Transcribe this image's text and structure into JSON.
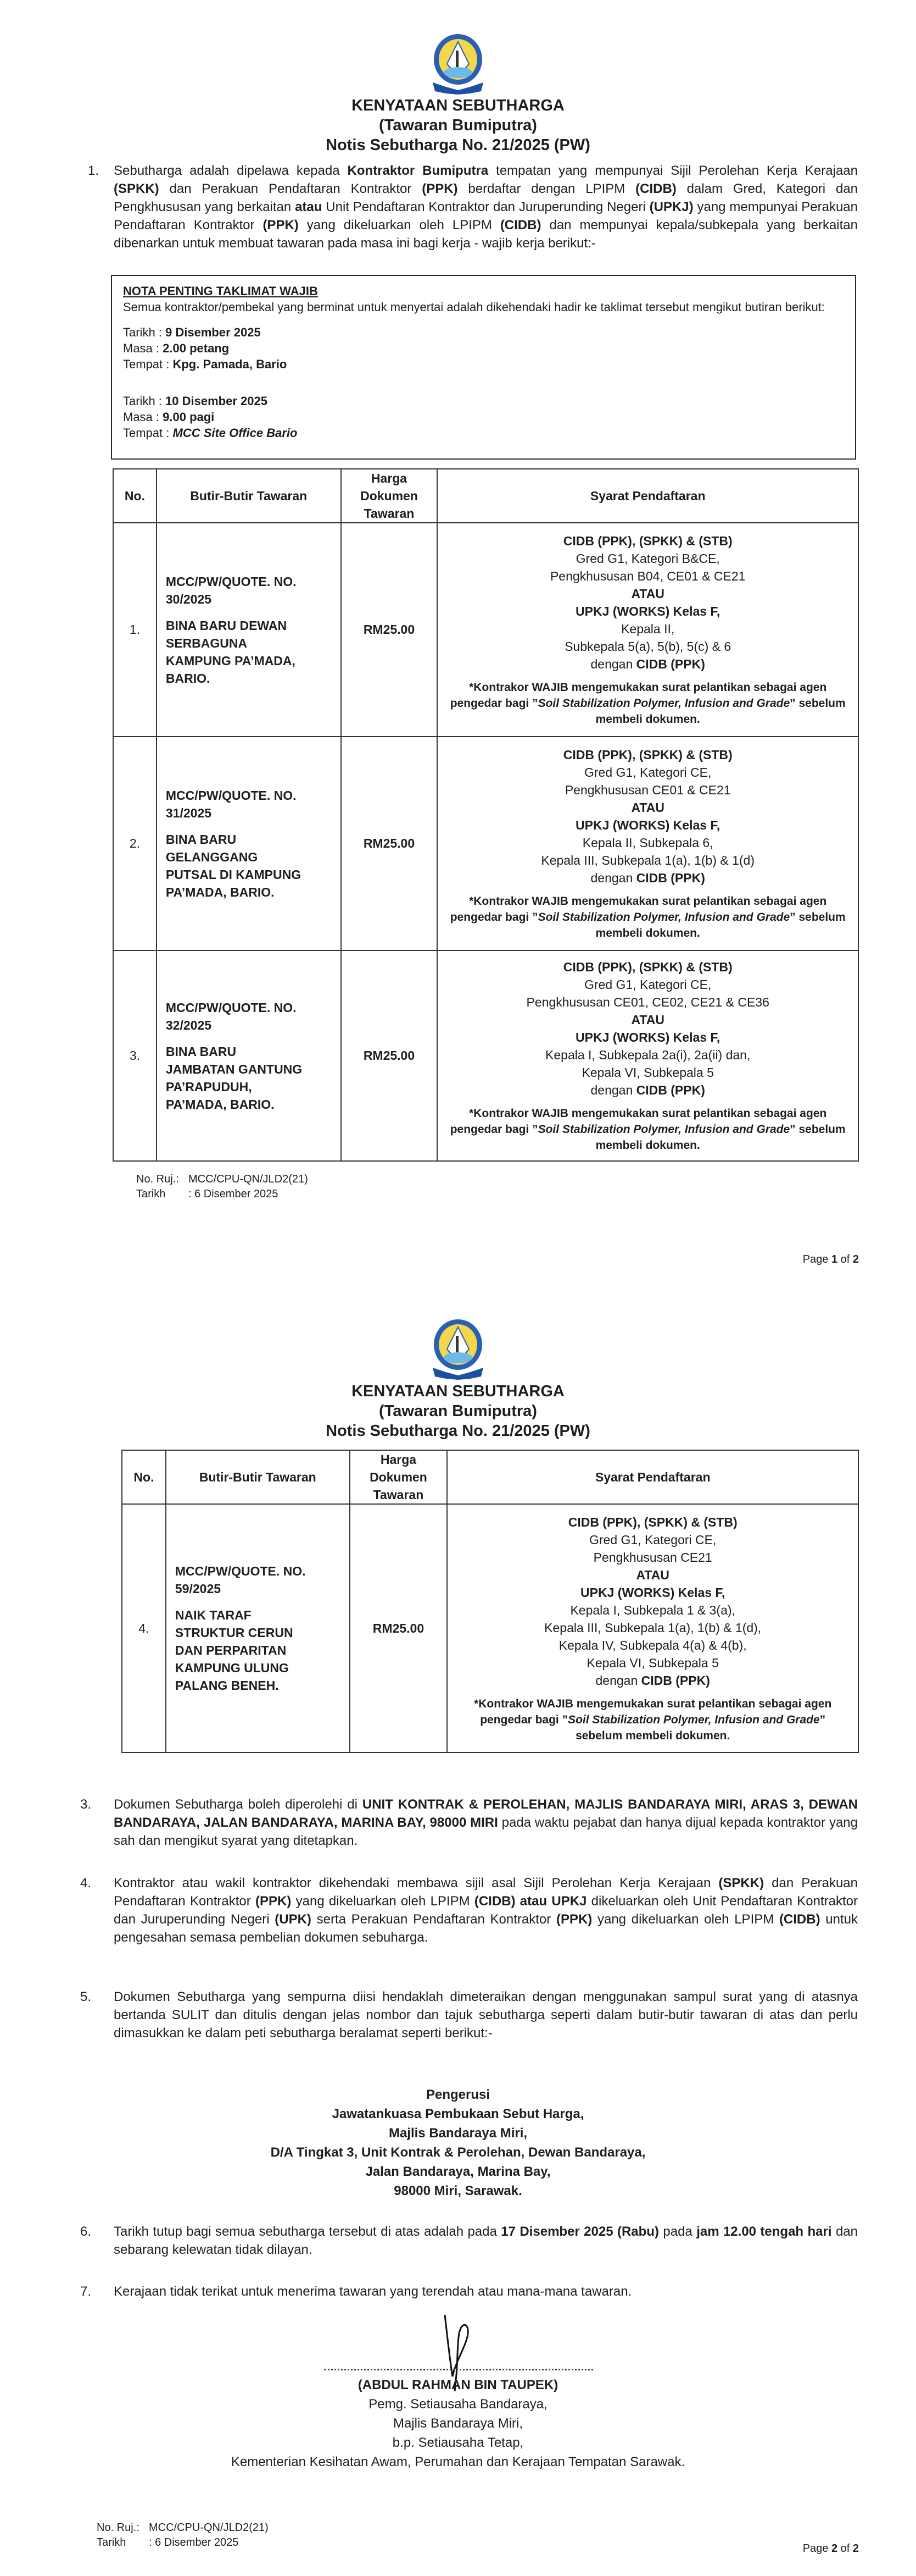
{
  "logo": {
    "name": "Majlis Bandaraya Miri emblem",
    "colors": {
      "ring": "#2b5fb4",
      "inner": "#f2d64b",
      "water": "#6fb7e6",
      "ribbon": "#1f4fa0"
    }
  },
  "header": {
    "title": "KENYATAAN SEBUTHARGA",
    "subtitle": "(Tawaran Bumiputra)",
    "notice_no": "Notis Sebutharga No. 21/2025 (PW)"
  },
  "para1": {
    "num": "1.",
    "segments": [
      {
        "t": "Sebutharga adalah dipelawa kepada "
      },
      {
        "t": "Kontraktor Bumiputra",
        "b": true
      },
      {
        "t": " tempatan yang mempunyai Sijil Perolehan Kerja Kerajaan "
      },
      {
        "t": "(SPKK)",
        "b": true
      },
      {
        "t": " dan Perakuan Pendaftaran Kontraktor "
      },
      {
        "t": "(PPK)",
        "b": true
      },
      {
        "t": " berdaftar dengan LPIPM "
      },
      {
        "t": "(CIDB)",
        "b": true
      },
      {
        "t": " dalam Gred, Kategori dan Pengkhususan yang berkaitan "
      },
      {
        "t": "atau",
        "b": true
      },
      {
        "t": " Unit Pendaftaran Kontraktor dan Juruperunding Negeri "
      },
      {
        "t": "(UPKJ)",
        "b": true
      },
      {
        "t": " yang mempunyai Perakuan Pendaftaran Kontraktor "
      },
      {
        "t": "(PPK)",
        "b": true
      },
      {
        "t": " yang dikeluarkan oleh LPIPM "
      },
      {
        "t": "(CIDB)",
        "b": true
      },
      {
        "t": " dan mempunyai kepala/subkepala yang berkaitan dibenarkan untuk membuat tawaran pada masa ini bagi kerja - wajib kerja berikut:-"
      }
    ]
  },
  "nota": {
    "heading": "NOTA PENTING TAKLIMAT WAJIB",
    "intro": "Semua kontraktor/pembekal yang berminat untuk menyertai adalah dikehendaki hadir ke taklimat tersebut mengikut butiran berikut:",
    "sessions": [
      {
        "date_label": "Tarikh : ",
        "date": "9 Disember 2025",
        "time_label": "Masa : ",
        "time": "2.00 petang",
        "place_label": "Tempat : ",
        "place": "Kpg. Pamada, Bario",
        "place_italic": false
      },
      {
        "date_label": "Tarikh : ",
        "date": "10 Disember 2025",
        "time_label": "Masa : ",
        "time": "9.00 pagi",
        "place_label": "Tempat : ",
        "place": "MCC Site Office Bario",
        "place_italic": true
      }
    ]
  },
  "table_headers": {
    "no": "No.",
    "item": "Butir-Butir Tawaran",
    "price": [
      "Harga",
      "Dokumen",
      "Tawaran"
    ],
    "req": "Syarat Pendaftaran"
  },
  "tables": [
    {
      "rows": [
        {
          "no": "1.",
          "ref": [
            "MCC/PW/QUOTE. NO.",
            "30/2025"
          ],
          "title": [
            "BINA BARU DEWAN",
            "SERBAGUNA",
            "KAMPUNG PA’MADA,",
            "BARIO."
          ],
          "price": "RM25.00",
          "req": [
            [
              {
                "t": "CIDB (PPK), (SPKK) & (STB)",
                "b": true
              }
            ],
            [
              {
                "t": "Gred G1, Kategori B&CE,"
              }
            ],
            [
              {
                "t": "Pengkhususan B04, CE01 & CE21"
              }
            ],
            [
              {
                "t": "ATAU",
                "b": true
              }
            ],
            [
              {
                "t": "UPKJ (WORKS) Kelas F,",
                "b": true
              }
            ],
            [
              {
                "t": "Kepala II,"
              }
            ],
            [
              {
                "t": "Subkepala 5(a), 5(b), 5(c) & 6"
              }
            ],
            [
              {
                "t": "dengan "
              },
              {
                "t": "CIDB (PPK)",
                "b": true
              }
            ]
          ],
          "note": [
            {
              "t": "*Kontrakor WAJIB mengemukakan surat pelantikan sebagai agen pengedar bagi ”"
            },
            {
              "t": "Soil Stabilization Polymer, Infusion and Grade",
              "i": true
            },
            {
              "t": "” sebelum membeli dokumen."
            }
          ]
        },
        {
          "no": "2.",
          "ref": [
            "MCC/PW/QUOTE. NO.",
            "31/2025"
          ],
          "title": [
            "BINA BARU",
            "GELANGGANG",
            "PUTSAL DI KAMPUNG",
            "PA’MADA, BARIO."
          ],
          "price": "RM25.00",
          "req": [
            [
              {
                "t": "CIDB (PPK), (SPKK) & (STB)",
                "b": true
              }
            ],
            [
              {
                "t": "Gred G1, Kategori CE,"
              }
            ],
            [
              {
                "t": "Pengkhususan CE01 & CE21"
              }
            ],
            [
              {
                "t": "ATAU",
                "b": true
              }
            ],
            [
              {
                "t": "UPKJ (WORKS) Kelas F,",
                "b": true
              }
            ],
            [
              {
                "t": "Kepala II, Subkepala 6,"
              }
            ],
            [
              {
                "t": "Kepala III, Subkepala 1(a), 1(b) & 1(d)"
              }
            ],
            [
              {
                "t": "dengan "
              },
              {
                "t": "CIDB (PPK)",
                "b": true
              }
            ]
          ],
          "note": [
            {
              "t": "*Kontrakor WAJIB mengemukakan surat pelantikan sebagai agen pengedar bagi ”"
            },
            {
              "t": "Soil Stabilization Polymer, Infusion and Grade",
              "i": true
            },
            {
              "t": "” sebelum membeli dokumen."
            }
          ]
        },
        {
          "no": "3.",
          "ref": [
            "MCC/PW/QUOTE. NO.",
            "32/2025"
          ],
          "title": [
            "BINA BARU",
            "JAMBATAN GANTUNG",
            "PA’RAPUDUH,",
            "PA’MADA, BARIO."
          ],
          "price": "RM25.00",
          "req": [
            [
              {
                "t": "CIDB (PPK), (SPKK) & (STB)",
                "b": true
              }
            ],
            [
              {
                "t": "Gred G1, Kategori CE,"
              }
            ],
            [
              {
                "t": "Pengkhususan CE01, CE02, CE21 & CE36"
              }
            ],
            [
              {
                "t": "ATAU",
                "b": true
              }
            ],
            [
              {
                "t": "UPKJ (WORKS) Kelas F,",
                "b": true
              }
            ],
            [
              {
                "t": "Kepala I, Subkepala 2a(i), 2a(ii) dan,"
              }
            ],
            [
              {
                "t": "Kepala VI, Subkepala 5"
              }
            ],
            [
              {
                "t": "dengan "
              },
              {
                "t": "CIDB (PPK)",
                "b": true
              }
            ]
          ],
          "note": [
            {
              "t": "*Kontrakor WAJIB mengemukakan surat pelantikan sebagai agen pengedar bagi ”"
            },
            {
              "t": "Soil Stabilization Polymer, Infusion and Grade",
              "i": true
            },
            {
              "t": "” sebelum membeli dokumen."
            }
          ]
        }
      ]
    },
    {
      "rows": [
        {
          "no": "4.",
          "ref": [
            "MCC/PW/QUOTE. NO.",
            "59/2025"
          ],
          "title": [
            "NAIK TARAF",
            "STRUKTUR CERUN",
            "DAN PERPARITAN",
            "KAMPUNG ULUNG",
            "PALANG BENEH."
          ],
          "price": "RM25.00",
          "req": [
            [
              {
                "t": "CIDB (PPK), (SPKK) & (STB)",
                "b": true
              }
            ],
            [
              {
                "t": "Gred G1, Kategori CE,"
              }
            ],
            [
              {
                "t": "Pengkhususan CE21"
              }
            ],
            [
              {
                "t": "ATAU",
                "b": true
              }
            ],
            [
              {
                "t": "UPKJ (WORKS) Kelas F,",
                "b": true
              }
            ],
            [
              {
                "t": "Kepala I, Subkepala 1 & 3(a),"
              }
            ],
            [
              {
                "t": "Kepala III, Subkepala 1(a), 1(b) & 1(d),"
              }
            ],
            [
              {
                "t": "Kepala IV, Subkepala 4(a) & 4(b),"
              }
            ],
            [
              {
                "t": "Kepala VI, Subkepala 5"
              }
            ],
            [
              {
                "t": "dengan "
              },
              {
                "t": "CIDB (PPK)",
                "b": true
              }
            ]
          ],
          "note": [
            {
              "t": "*Kontrakor WAJIB mengemukakan surat pelantikan sebagai agen pengedar bagi ”"
            },
            {
              "t": "Soil Stabilization Polymer, Infusion and Grade",
              "i": true
            },
            {
              "t": "” sebelum membeli dokumen."
            }
          ]
        }
      ]
    }
  ],
  "ref": {
    "no_label": "No. Ruj.:",
    "no_value": "MCC/CPU-QN/JLD2(21)",
    "date_label": "Tarikh",
    "date_value": ":  6 Disember 2025"
  },
  "page1": {
    "prefix": "Page ",
    "current": "1",
    "mid": " of ",
    "total": "2"
  },
  "page2": {
    "prefix": "Page ",
    "current": "2",
    "mid": " of ",
    "total": "2"
  },
  "para3": {
    "num": "3.",
    "segments": [
      {
        "t": "Dokumen Sebutharga boleh diperolehi di "
      },
      {
        "t": "UNIT KONTRAK & PEROLEHAN, MAJLIS BANDARAYA MIRI, ARAS 3, DEWAN BANDARAYA, JALAN BANDARAYA, MARINA BAY, 98000 MIRI",
        "b": true
      },
      {
        "t": " pada waktu pejabat dan hanya dijual kepada kontraktor yang sah dan mengikut syarat yang ditetapkan."
      }
    ]
  },
  "para4": {
    "num": "4.",
    "segments": [
      {
        "t": "Kontraktor atau wakil kontraktor dikehendaki membawa sijil asal Sijil Perolehan Kerja Kerajaan "
      },
      {
        "t": "(SPKK)",
        "b": true
      },
      {
        "t": " dan Perakuan Pendaftaran Kontraktor "
      },
      {
        "t": "(PPK)",
        "b": true
      },
      {
        "t": " yang dikeluarkan oleh LPIPM "
      },
      {
        "t": "(CIDB) atau UPKJ",
        "b": true
      },
      {
        "t": " dikeluarkan oleh Unit Pendaftaran Kontraktor dan Juruperunding Negeri "
      },
      {
        "t": "(UPK)",
        "b": true
      },
      {
        "t": " serta Perakuan Pendaftaran Kontraktor "
      },
      {
        "t": "(PPK)",
        "b": true
      },
      {
        "t": " yang dikeluarkan oleh LPIPM "
      },
      {
        "t": "(CIDB)",
        "b": true
      },
      {
        "t": " untuk pengesahan semasa pembelian dokumen sebuharga."
      }
    ]
  },
  "para5": {
    "num": "5.",
    "segments": [
      {
        "t": "Dokumen Sebutharga yang sempurna diisi hendaklah dimeteraikan dengan menggunakan sampul surat yang di atasnya bertanda SULIT dan ditulis dengan jelas nombor dan tajuk sebutharga seperti dalam butir-butir tawaran di atas dan perlu dimasukkan ke dalam peti sebutharga beralamat seperti berikut:-"
      }
    ]
  },
  "address": [
    "Pengerusi",
    "Jawatankuasa Pembukaan Sebut Harga,",
    "Majlis Bandaraya Miri,",
    "D/A Tingkat 3, Unit Kontrak & Perolehan, Dewan Bandaraya,",
    "Jalan Bandaraya, Marina Bay,",
    "98000 Miri, Sarawak."
  ],
  "para6": {
    "num": "6.",
    "segments": [
      {
        "t": "Tarikh tutup bagi semua sebutharga tersebut di atas adalah pada "
      },
      {
        "t": "17 Disember 2025 (Rabu)",
        "b": true
      },
      {
        "t": " pada "
      },
      {
        "t": "jam 12.00 tengah hari",
        "b": true
      },
      {
        "t": " dan sebarang kelewatan tidak dilayan."
      }
    ]
  },
  "para7": {
    "num": "7.",
    "segments": [
      {
        "t": "Kerajaan tidak terikat untuk menerima tawaran yang terendah atau mana-mana tawaran."
      }
    ]
  },
  "signatory": {
    "name": "(ABDUL RAHMAN BIN TAUPEK)",
    "lines": [
      "Pemg. Setiausaha Bandaraya,",
      "Majlis Bandaraya Miri,",
      "b.p. Setiausaha Tetap,",
      "Kementerian Kesihatan Awam, Perumahan dan Kerajaan Tempatan Sarawak."
    ]
  }
}
